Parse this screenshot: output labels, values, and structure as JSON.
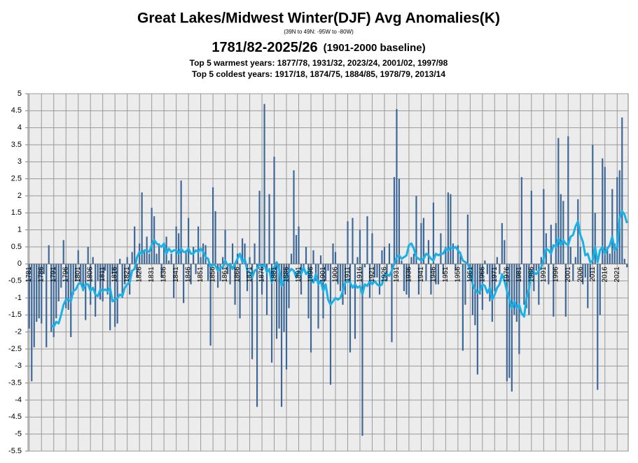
{
  "chart_data": {
    "type": "bar",
    "title": "Great Lakes/Midwest Winter(DJF) Avg Anomalies(K)",
    "subtitle": "(39N to 49N: -95W to -80W)",
    "period": "1781/82-2025/26",
    "baseline": "(1901-2000 baseline)",
    "annotations": [
      "Top 5 warmest years: 1877/78,  1931/32,  2023/24,  2001/02,  1997/98",
      "Top 5 coldest years: 1917/18,  1874/75,  1884/85,  1978/79,  2013/14"
    ],
    "categories": [
      "1781",
      null,
      null,
      null,
      null,
      "1786",
      null,
      null,
      null,
      null,
      "1791",
      null,
      null,
      null,
      null,
      "1796",
      null,
      null,
      null,
      null,
      "1801",
      null,
      null,
      null,
      null,
      "1806",
      null,
      null,
      null,
      null,
      "1811",
      null,
      null,
      null,
      null,
      "1816",
      null,
      null,
      null,
      null,
      "1821",
      null,
      null,
      null,
      null,
      "1826",
      null,
      null,
      null,
      null,
      "1831",
      null,
      null,
      null,
      null,
      "1836",
      null,
      null,
      null,
      null,
      "1841",
      null,
      null,
      null,
      null,
      "1846",
      null,
      null,
      null,
      null,
      "1851",
      null,
      null,
      null,
      null,
      "1856",
      null,
      null,
      null,
      null,
      "1861",
      null,
      null,
      null,
      null,
      "1866",
      null,
      null,
      null,
      null,
      "1871",
      null,
      null,
      null,
      null,
      "1876",
      null,
      null,
      null,
      null,
      "1881",
      null,
      null,
      null,
      null,
      "1886",
      null,
      null,
      null,
      null,
      "1891",
      null,
      null,
      null,
      null,
      "1896",
      null,
      null,
      null,
      null,
      "1901",
      null,
      null,
      null,
      null,
      "1906",
      null,
      null,
      null,
      null,
      "1911",
      null,
      null,
      null,
      null,
      "1916",
      null,
      null,
      null,
      null,
      "1921",
      null,
      null,
      null,
      null,
      "1926",
      null,
      null,
      null,
      null,
      "1931",
      null,
      null,
      null,
      null,
      "1936",
      null,
      null,
      null,
      null,
      "1941",
      null,
      null,
      null,
      null,
      "1946",
      null,
      null,
      null,
      null,
      "1951",
      null,
      null,
      null,
      null,
      "1956",
      null,
      null,
      null,
      null,
      "1961",
      null,
      null,
      null,
      null,
      "1966",
      null,
      null,
      null,
      null,
      "1971",
      null,
      null,
      null,
      null,
      "1976",
      null,
      null,
      null,
      null,
      "1981",
      null,
      null,
      null,
      null,
      "1986",
      null,
      null,
      null,
      null,
      "1991",
      null,
      null,
      null,
      null,
      "1996",
      null,
      null,
      null,
      null,
      "2001",
      null,
      null,
      null,
      null,
      "2006",
      null,
      null,
      null,
      null,
      "2011",
      null,
      null,
      null,
      null,
      "2016",
      null,
      null,
      null,
      null,
      "2021",
      null,
      null,
      null,
      null
    ],
    "series": [
      {
        "type": "bar",
        "color": "#3c6796",
        "values": [
          -1.9,
          -3.45,
          -2.45,
          -1.7,
          -1.6,
          -1.75,
          -0.3,
          -2.45,
          0.55,
          -2.0,
          -2.15,
          -1.6,
          -1.1,
          -0.7,
          0.7,
          -1.3,
          -1.35,
          -2.15,
          -0.9,
          -0.5,
          0.4,
          -0.6,
          -0.8,
          -1.65,
          0.5,
          -1.2,
          0.2,
          -1.55,
          -0.5,
          -1.05,
          -1.1,
          -0.2,
          -0.9,
          -1.95,
          -0.3,
          -1.85,
          -1.75,
          0.15,
          -1.0,
          -0.6,
          0.2,
          -0.9,
          0.35,
          1.1,
          -0.4,
          0.6,
          2.1,
          0.4,
          0.8,
          0.3,
          1.65,
          1.4,
          0.3,
          0.6,
          -0.4,
          0.5,
          0.8,
          0.1,
          0.3,
          -1.0,
          1.1,
          0.9,
          2.45,
          -1.15,
          0.4,
          1.35,
          -0.6,
          0.5,
          -0.3,
          1.1,
          0.2,
          0.6,
          0.55,
          -0.5,
          -2.4,
          2.25,
          1.55,
          -0.7,
          -0.5,
          0.2,
          1.0,
          -0.3,
          -0.6,
          0.6,
          -1.2,
          0.3,
          -1.6,
          0.75,
          0.6,
          -0.8,
          0.2,
          -2.8,
          0.6,
          -4.2,
          2.15,
          -0.9,
          4.7,
          -1.5,
          2.05,
          -2.9,
          3.15,
          -2.2,
          -1.9,
          -4.2,
          -2.0,
          -3.1,
          -1.3,
          0.3,
          2.75,
          0.85,
          1.1,
          -0.9,
          -0.2,
          0.5,
          -1.6,
          -2.6,
          0.4,
          -0.5,
          -1.9,
          0.25,
          -1.6,
          -0.5,
          -0.2,
          -3.55,
          0.6,
          0.35,
          -0.6,
          -0.8,
          -1.2,
          -0.9,
          1.25,
          -2.6,
          1.35,
          -2.2,
          0.2,
          1.0,
          -5.05,
          -0.1,
          1.4,
          -1.0,
          0.9,
          -0.4,
          -0.4,
          -0.9,
          0.4,
          0.5,
          -0.5,
          0.6,
          -2.3,
          2.55,
          4.55,
          2.5,
          0.1,
          -0.8,
          -0.9,
          -1.0,
          0.2,
          0.3,
          2.0,
          -0.9,
          1.2,
          1.35,
          -0.5,
          0.7,
          -0.9,
          1.8,
          -0.6,
          -0.6,
          0.9,
          -0.3,
          0.5,
          2.1,
          2.05,
          0.6,
          -0.2,
          0.55,
          0.35,
          -2.55,
          -1.2,
          1.45,
          -0.5,
          -1.5,
          -1.8,
          -3.25,
          -0.9,
          -1.35,
          0.1,
          -0.3,
          -1.1,
          -1.7,
          -0.8,
          0.2,
          -0.3,
          1.2,
          0.7,
          -3.45,
          -3.35,
          -3.75,
          -1.5,
          -1.7,
          -2.65,
          2.55,
          -1.2,
          -1.3,
          -1.5,
          2.15,
          -0.8,
          -0.2,
          -1.2,
          0.2,
          2.2,
          0.9,
          -0.6,
          1.15,
          -1.55,
          1.2,
          3.7,
          2.05,
          1.85,
          -1.55,
          3.75,
          0.5,
          -0.5,
          0.2,
          1.9,
          0.5,
          -0.6,
          -0.4,
          -1.3,
          -0.4,
          3.5,
          1.5,
          -3.7,
          -1.5,
          3.1,
          2.85,
          0.5,
          0.3,
          2.2,
          0.6,
          2.55,
          2.75,
          4.3,
          0.15,
          -0.1
        ]
      },
      {
        "type": "line",
        "color": "#1ab0e8",
        "values": [
          null,
          null,
          null,
          null,
          null,
          null,
          null,
          null,
          null,
          -1.8,
          -1.85,
          -1.7,
          -1.75,
          -1.5,
          -1.2,
          -1.05,
          -1.05,
          -1.1,
          -0.8,
          -0.75,
          -0.6,
          -0.55,
          -0.75,
          -0.6,
          -0.6,
          -0.8,
          -0.7,
          -0.9,
          -0.95,
          -0.75,
          -0.8,
          -0.75,
          -0.8,
          -0.7,
          -1.1,
          -1.05,
          -1.0,
          -0.9,
          -0.95,
          -0.7,
          -0.6,
          -0.55,
          -0.2,
          -0.15,
          0.2,
          0.35,
          0.3,
          0.4,
          0.4,
          0.35,
          0.55,
          0.7,
          0.6,
          0.55,
          0.5,
          0.6,
          0.3,
          0.45,
          0.35,
          0.4,
          0.4,
          0.3,
          0.45,
          0.35,
          0.35,
          0.45,
          0.3,
          0.3,
          0.4,
          0.35,
          0.45,
          0.35,
          0.2,
          0.15,
          -0.1,
          0.0,
          -0.05,
          -0.2,
          -0.1,
          -0.1,
          0.1,
          -0.05,
          0.0,
          -0.15,
          0.0,
          0.15,
          0.3,
          0.05,
          0.15,
          -0.2,
          -0.25,
          -0.4,
          -0.2,
          -0.15,
          0.0,
          -0.1,
          0.0,
          -0.25,
          -0.15,
          -0.55,
          -0.1,
          0.05,
          -0.15,
          -0.65,
          -0.5,
          -0.4,
          -0.25,
          -0.15,
          -0.2,
          -0.4,
          -0.2,
          -0.3,
          -0.1,
          -0.3,
          -0.2,
          -0.45,
          -0.55,
          -0.3,
          -0.6,
          -0.5,
          -0.8,
          -0.6,
          -1.05,
          -1.2,
          -1.1,
          -1.0,
          -1.05,
          -1.0,
          -0.8,
          -0.55,
          -0.5,
          -0.55,
          -0.7,
          -0.6,
          -0.7,
          -0.65,
          -0.9,
          -0.6,
          -0.65,
          -0.5,
          -0.6,
          -0.5,
          -0.6,
          -0.65,
          -0.6,
          -0.3,
          -0.3,
          -0.35,
          -0.2,
          0.0,
          0.2,
          0.25,
          0.15,
          0.2,
          0.25,
          0.55,
          0.6,
          0.45,
          0.2,
          0.15,
          0.1,
          0.15,
          0.3,
          0.25,
          0.15,
          0.1,
          0.3,
          0.25,
          0.3,
          0.3,
          0.45,
          0.4,
          0.5,
          0.45,
          0.5,
          0.4,
          0.3,
          0.1,
          0.05,
          0.0,
          -0.2,
          -0.6,
          -0.75,
          -0.85,
          -0.8,
          -0.6,
          -0.65,
          -0.85,
          -0.7,
          -1.05,
          -0.9,
          -0.7,
          -0.6,
          -0.3,
          -0.5,
          -0.8,
          -1.05,
          -1.3,
          -1.1,
          -1.3,
          -1.2,
          -1.45,
          -1.55,
          -1.0,
          -0.75,
          -0.2,
          -0.25,
          -0.3,
          -0.2,
          -0.1,
          0.15,
          0.45,
          0.4,
          0.3,
          0.55,
          0.5,
          0.75,
          0.55,
          0.7,
          0.6,
          0.55,
          0.8,
          0.85,
          1.1,
          1.25,
          0.85,
          0.65,
          0.25,
          0.3,
          0.05,
          0.1,
          0.5,
          0.05,
          0.4,
          0.5,
          0.3,
          0.45,
          0.55,
          0.8,
          0.4,
          0.5,
          1.35,
          1.55,
          1.45,
          1.2
        ]
      }
    ],
    "ylim": [
      -5.5,
      5
    ],
    "yticks": [
      5,
      4.5,
      4,
      3.5,
      3,
      2.5,
      2,
      1.5,
      1,
      0.5,
      0,
      -0.5,
      -1,
      -1.5,
      -2,
      -2.5,
      -3,
      -3.5,
      -4,
      -4.5,
      -5,
      -5.5
    ],
    "grid": true
  }
}
